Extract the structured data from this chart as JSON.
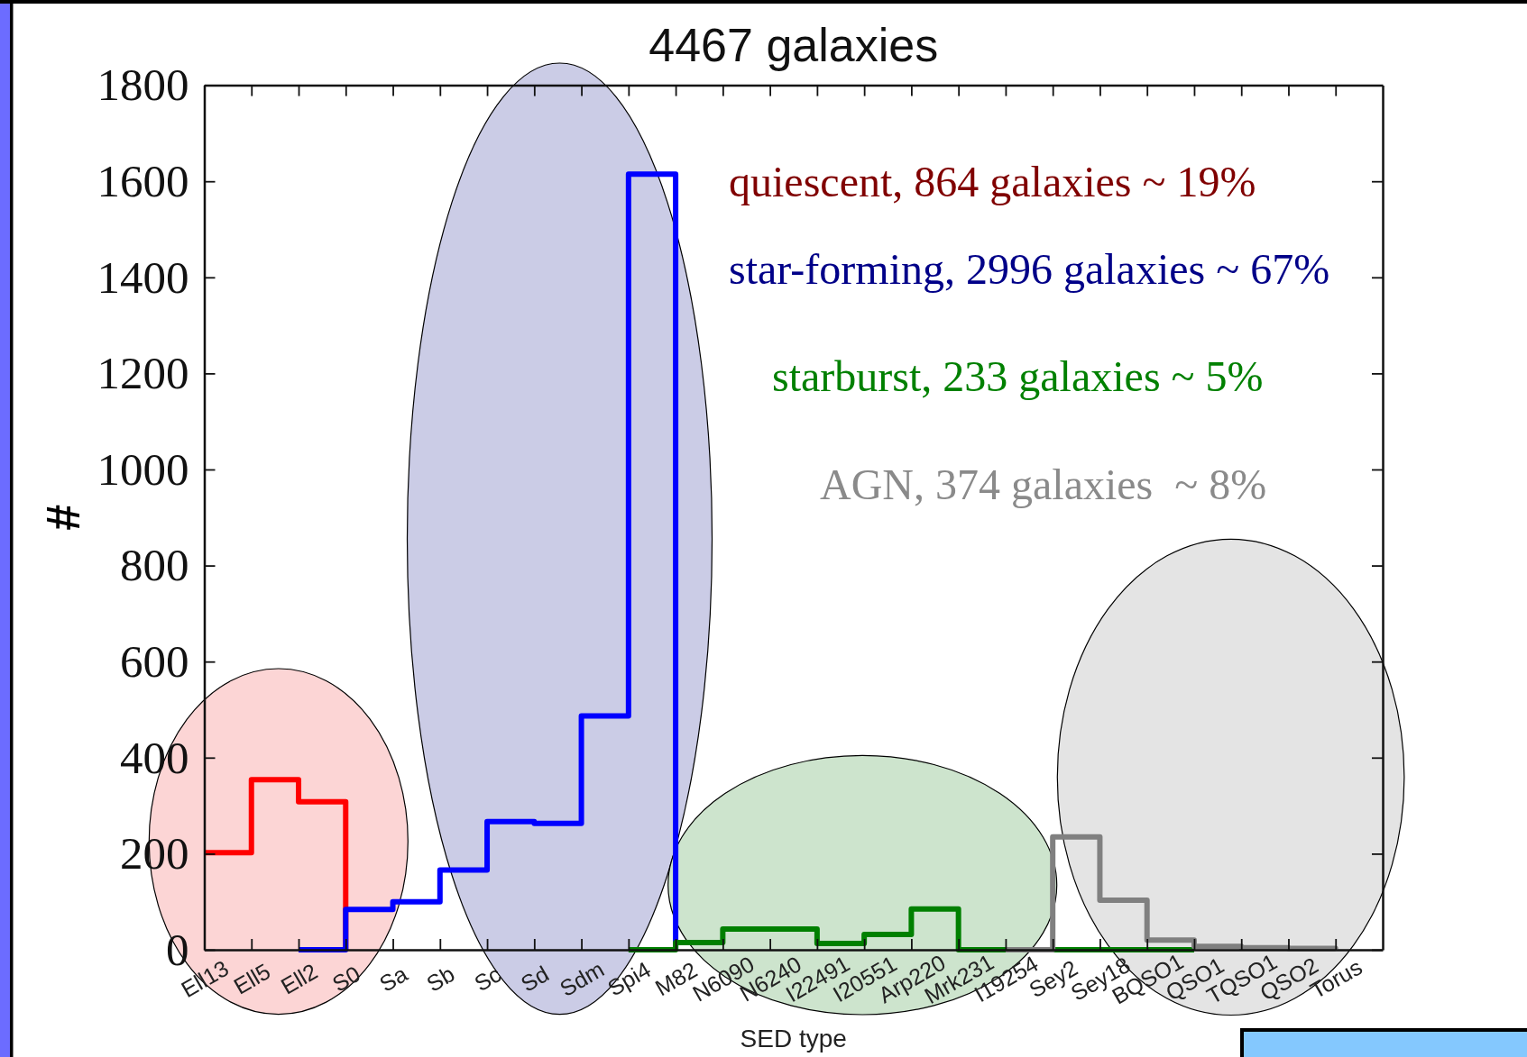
{
  "chart_data": {
    "type": "step",
    "title": "4467 galaxies",
    "xlabel": "SED type",
    "ylabel": "#",
    "categories": [
      "Ell13",
      "Ell5",
      "Ell2",
      "S0",
      "Sa",
      "Sb",
      "Sc",
      "Sd",
      "Sdm",
      "Spi4",
      "M82",
      "N6090",
      "N6240",
      "I22491",
      "I20551",
      "Arp220",
      "Mrk231",
      "I19254",
      "Sey2",
      "Sey18",
      "BQSO1",
      "QSO1",
      "TQSO1",
      "QSO2",
      "Torus"
    ],
    "series": [
      {
        "color": "#ff0000",
        "values": [
          202,
          354,
          308,
          0,
          null,
          null,
          null,
          null,
          null,
          null,
          null,
          null,
          null,
          null,
          null,
          null,
          null,
          null,
          null,
          null,
          null,
          null,
          null,
          null,
          null
        ]
      },
      {
        "color": "#0000ff",
        "values": [
          null,
          null,
          0,
          84,
          100,
          166,
          267,
          263,
          487,
          1615,
          0,
          null,
          null,
          null,
          null,
          null,
          null,
          null,
          null,
          null,
          null,
          null,
          null,
          null,
          null
        ]
      },
      {
        "color": "#008000",
        "values": [
          null,
          null,
          null,
          null,
          null,
          null,
          null,
          null,
          null,
          0,
          15,
          43,
          43,
          13,
          32,
          85,
          0,
          0,
          0,
          0,
          0,
          0,
          null,
          null,
          null
        ]
      },
      {
        "color": "#808080",
        "values": [
          null,
          null,
          null,
          null,
          null,
          null,
          null,
          null,
          null,
          null,
          null,
          null,
          null,
          null,
          null,
          null,
          null,
          0,
          235,
          103,
          20,
          7,
          4,
          3,
          2
        ]
      }
    ],
    "ylim": [
      0,
      1800
    ],
    "yticks": [
      0,
      200,
      400,
      600,
      800,
      1000,
      1200,
      1400,
      1600,
      1800
    ],
    "annotations": [
      "quiescent, 864 galaxies ~ 19%",
      "star-forming, 2996 galaxies ~ 67%",
      "starburst, 233 galaxies ~ 5%",
      "AGN, 374 galaxies  ~ 8%"
    ]
  }
}
